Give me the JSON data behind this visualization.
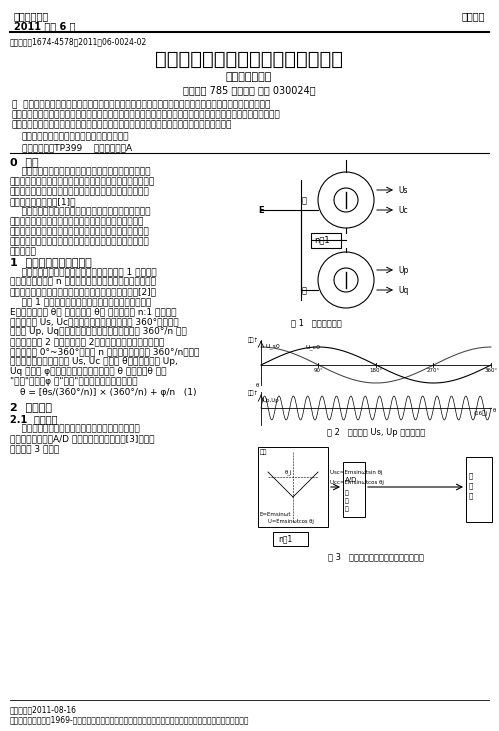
{
  "header_left_line1": "山西电子技术",
  "header_left_line2": "2011 年第 6 期",
  "header_right": "应用实践",
  "article_id": "文章编号：1674-4578（2011）06-0024-02",
  "title": "多极旋转变压器测角原理及实现方法",
  "authors": "王星民，郭盛杰",
  "affiliation": "（国营第 785 厂，山西 太原 030024）",
  "abstract_text": "摘  要：旋转变压器作为现代伺服系统中广泛使用的角位置测量元件，大量应用于高精度大中型数控系统、机器人控制、工业控制、武器火力控制及惯性导航领域；为了提高测量精度，目前常用多极旋转变压器粗精组合的方法，完成角度测量；基于此主要介绍了多极旋转变压器的测角原理，并提出了具体实现方法。",
  "keywords_text": "关键词：旋转变压器；多极；测角；伺服系统",
  "classification": "中图分类号：TP399    文献标识码：A",
  "fig1_caption": "图 1   粗、精示机构",
  "fig2_caption": "图 2   粗、精示 Us, Up 对应的波形",
  "fig3_caption": "图 3   多极旋转变压器测角装置电路框图",
  "footer_date": "收稿日期：2011-08-16",
  "footer_author": "作者简介：王星民（1969-），男，山西祁县人，工程师，学士学位，目前从事于工作及研究方向：计算机控制。",
  "bg_color": "#ffffff",
  "text_color": "#000000"
}
